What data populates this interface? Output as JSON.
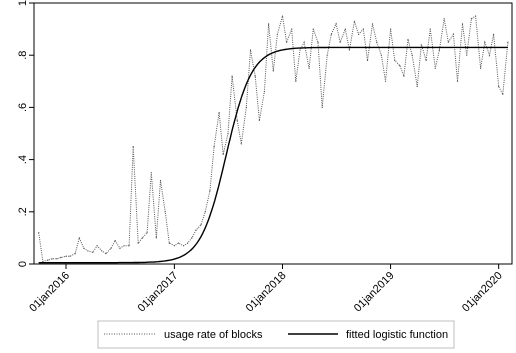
{
  "chart_data": {
    "type": "line",
    "title": "",
    "xlabel": "",
    "ylabel": "",
    "x_axis": {
      "kind": "date",
      "range": [
        "2015-09-15",
        "2020-02-15"
      ],
      "ticks": [
        {
          "date": "2016-01-01",
          "label": "01jan2016"
        },
        {
          "date": "2017-01-01",
          "label": "01jan2017"
        },
        {
          "date": "2018-01-01",
          "label": "01jan2018"
        },
        {
          "date": "2019-01-01",
          "label": "01jan2019"
        },
        {
          "date": "2020-01-01",
          "label": "01jan2020"
        }
      ]
    },
    "y_axis": {
      "range": [
        0,
        1
      ],
      "ticks": [
        {
          "value": 0,
          "label": "0"
        },
        {
          "value": 0.2,
          "label": ".2"
        },
        {
          "value": 0.4,
          "label": ".4"
        },
        {
          "value": 0.6,
          "label": ".6"
        },
        {
          "value": 0.8,
          "label": ".8"
        },
        {
          "value": 1,
          "label": "1"
        }
      ]
    },
    "grid": false,
    "legend_position": "bottom",
    "series": [
      {
        "name": "usage rate of blocks",
        "style": "dotted",
        "color": "#555555",
        "x": [
          "2015-10-01",
          "2015-10-15",
          "2015-11-01",
          "2015-11-15",
          "2015-12-01",
          "2015-12-15",
          "2016-01-01",
          "2016-01-15",
          "2016-02-01",
          "2016-02-15",
          "2016-03-01",
          "2016-03-15",
          "2016-04-01",
          "2016-04-15",
          "2016-05-01",
          "2016-05-15",
          "2016-06-01",
          "2016-06-15",
          "2016-07-01",
          "2016-07-15",
          "2016-08-01",
          "2016-08-15",
          "2016-09-01",
          "2016-09-15",
          "2016-10-01",
          "2016-10-15",
          "2016-11-01",
          "2016-11-15",
          "2016-12-01",
          "2016-12-15",
          "2017-01-01",
          "2017-01-15",
          "2017-02-01",
          "2017-02-15",
          "2017-03-01",
          "2017-03-15",
          "2017-04-01",
          "2017-04-15",
          "2017-05-01",
          "2017-05-15",
          "2017-06-01",
          "2017-06-15",
          "2017-07-01",
          "2017-07-15",
          "2017-08-01",
          "2017-08-15",
          "2017-09-01",
          "2017-09-15",
          "2017-10-01",
          "2017-10-15",
          "2017-11-01",
          "2017-11-15",
          "2017-12-01",
          "2017-12-15",
          "2018-01-01",
          "2018-01-15",
          "2018-02-01",
          "2018-02-15",
          "2018-03-01",
          "2018-03-15",
          "2018-04-01",
          "2018-04-15",
          "2018-05-01",
          "2018-05-15",
          "2018-06-01",
          "2018-06-15",
          "2018-07-01",
          "2018-07-15",
          "2018-08-01",
          "2018-08-15",
          "2018-09-01",
          "2018-09-15",
          "2018-10-01",
          "2018-10-15",
          "2018-11-01",
          "2018-11-15",
          "2018-12-01",
          "2018-12-15",
          "2019-01-01",
          "2019-01-15",
          "2019-02-01",
          "2019-02-15",
          "2019-03-01",
          "2019-03-15",
          "2019-04-01",
          "2019-04-15",
          "2019-05-01",
          "2019-05-15",
          "2019-06-01",
          "2019-06-15",
          "2019-07-01",
          "2019-07-15",
          "2019-08-01",
          "2019-08-15",
          "2019-09-01",
          "2019-09-15",
          "2019-10-01",
          "2019-10-15",
          "2019-11-01",
          "2019-11-15",
          "2019-12-01",
          "2019-12-15",
          "2020-01-01",
          "2020-01-15",
          "2020-02-01"
        ],
        "y": [
          0.12,
          0.01,
          0.015,
          0.02,
          0.02,
          0.025,
          0.03,
          0.03,
          0.04,
          0.1,
          0.06,
          0.05,
          0.045,
          0.07,
          0.05,
          0.04,
          0.06,
          0.09,
          0.06,
          0.07,
          0.07,
          0.45,
          0.08,
          0.1,
          0.12,
          0.35,
          0.1,
          0.32,
          0.2,
          0.08,
          0.07,
          0.08,
          0.07,
          0.08,
          0.1,
          0.13,
          0.15,
          0.2,
          0.28,
          0.45,
          0.58,
          0.42,
          0.5,
          0.72,
          0.55,
          0.46,
          0.6,
          0.82,
          0.72,
          0.55,
          0.66,
          0.92,
          0.74,
          0.88,
          0.95,
          0.85,
          0.9,
          0.7,
          0.82,
          0.85,
          0.75,
          0.9,
          0.85,
          0.6,
          0.8,
          0.88,
          0.92,
          0.85,
          0.9,
          0.82,
          0.93,
          0.88,
          0.9,
          0.78,
          0.92,
          0.85,
          0.8,
          0.7,
          0.9,
          0.78,
          0.76,
          0.72,
          0.86,
          0.8,
          0.68,
          0.84,
          0.78,
          0.9,
          0.75,
          0.82,
          0.94,
          0.85,
          0.88,
          0.7,
          0.92,
          0.8,
          0.94,
          0.95,
          0.75,
          0.85,
          0.8,
          0.88,
          0.68,
          0.65,
          0.85
        ]
      },
      {
        "name": "fitted logistic function",
        "style": "solid",
        "color": "#000000",
        "model": "logistic",
        "asymptote": 0.83,
        "midpoint": "2017-06-25",
        "growth_per_year": 8.5,
        "base": 0.005
      }
    ]
  }
}
